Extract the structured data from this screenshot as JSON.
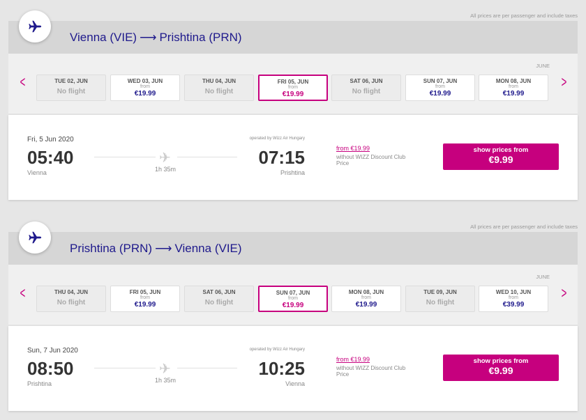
{
  "note": "All prices are per passenger and include taxes",
  "colors": {
    "brand": "#c6007e",
    "navy": "#1f1a8c"
  },
  "outbound": {
    "from": "Vienna (VIE)",
    "arrow": "⟶",
    "to": "Prishtina (PRN)",
    "month": "JUNE",
    "days": [
      {
        "label": "TUE 02, JUN",
        "status": "No flight"
      },
      {
        "label": "WED 03, JUN",
        "from": "from",
        "price": "€19.99"
      },
      {
        "label": "THU 04, JUN",
        "status": "No flight"
      },
      {
        "label": "FRI 05, JUN",
        "from": "from",
        "price": "€19.99",
        "selected": true
      },
      {
        "label": "SAT 06, JUN",
        "status": "No flight"
      },
      {
        "label": "SUN 07, JUN",
        "from": "from",
        "price": "€19.99"
      },
      {
        "label": "MON 08, JUN",
        "from": "from",
        "price": "€19.99"
      }
    ],
    "flight": {
      "date": "Fri, 5 Jun 2020",
      "dep": "05:40",
      "dep_city": "Vienna",
      "duration": "1h 35m",
      "operated": "operated by Wizz Air Hungary",
      "arr": "07:15",
      "arr_city": "Prishtina",
      "from_label": "from",
      "from_price": "€19.99",
      "without": "without WIZZ Discount Club Price",
      "btn_label": "show prices from",
      "btn_price": "€9.99"
    }
  },
  "return": {
    "from": "Prishtina (PRN)",
    "arrow": "⟶",
    "to": "Vienna (VIE)",
    "month": "JUNE",
    "days": [
      {
        "label": "THU 04, JUN",
        "status": "No flight"
      },
      {
        "label": "FRI 05, JUN",
        "from": "from",
        "price": "€19.99"
      },
      {
        "label": "SAT 06, JUN",
        "status": "No flight"
      },
      {
        "label": "SUN 07, JUN",
        "from": "from",
        "price": "€19.99",
        "selected": true
      },
      {
        "label": "MON 08, JUN",
        "from": "from",
        "price": "€19.99"
      },
      {
        "label": "TUE 09, JUN",
        "status": "No flight"
      },
      {
        "label": "WED 10, JUN",
        "from": "from",
        "price": "€39.99"
      }
    ],
    "flight": {
      "date": "Sun, 7 Jun 2020",
      "dep": "08:50",
      "dep_city": "Prishtina",
      "duration": "1h 35m",
      "operated": "operated by Wizz Air Hungary",
      "arr": "10:25",
      "arr_city": "Vienna",
      "from_label": "from",
      "from_price": "€19.99",
      "without": "without WIZZ Discount Club Price",
      "btn_label": "show prices from",
      "btn_price": "€9.99"
    }
  }
}
